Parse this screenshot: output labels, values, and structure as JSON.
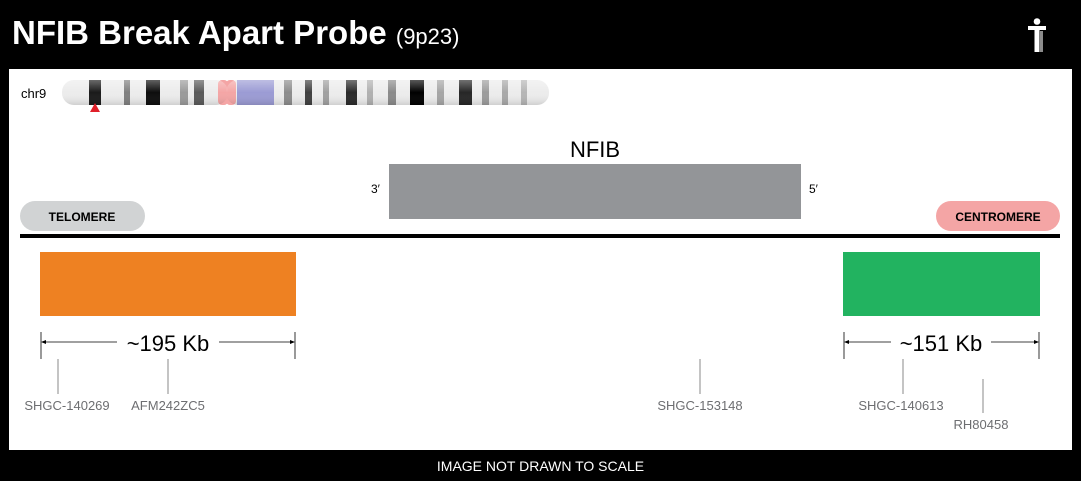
{
  "header": {
    "title": "NFIB Break Apart Probe",
    "band": "(9p23)",
    "logo_icon": "person-icon"
  },
  "chromosome": {
    "label": "chr9",
    "marker_color": "#e0202a"
  },
  "gene": {
    "name": "NFIB",
    "left_end": "3′",
    "right_end": "5′",
    "color": "#939598"
  },
  "ends": {
    "telomere": "TELOMERE",
    "centromere": "CENTROMERE",
    "telomere_color": "#d1d3d4",
    "centromere_color": "#f4a5a5"
  },
  "probes": [
    {
      "color": "#ee8122",
      "size": "~195 Kb"
    },
    {
      "color": "#22b360",
      "size": "~151 Kb"
    }
  ],
  "markers": [
    "SHGC-140269",
    "AFM242ZC5",
    "SHGC-153148",
    "SHGC-140613",
    "RH80458"
  ],
  "footer": "IMAGE NOT DRAWN TO SCALE"
}
